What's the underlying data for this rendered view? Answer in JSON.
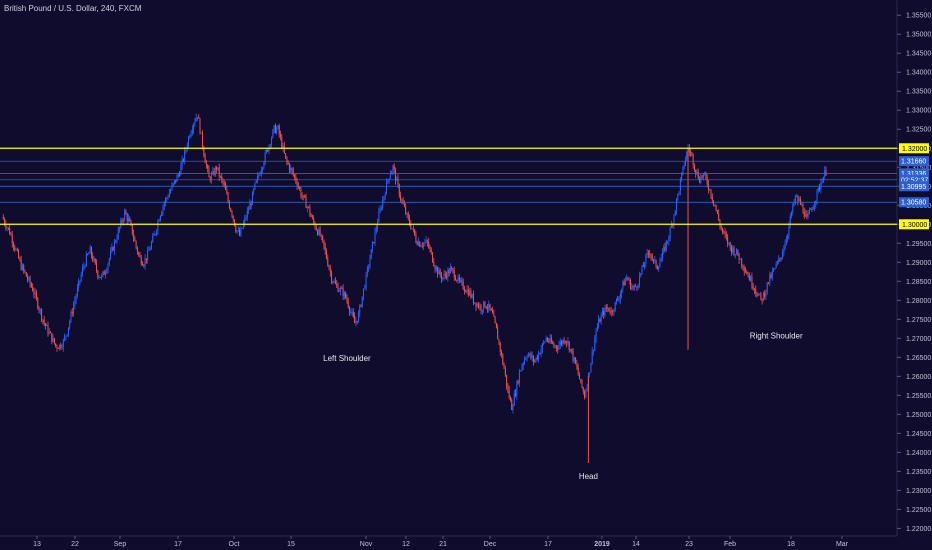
{
  "chart_data": {
    "type": "candlestick",
    "title": "British Pound / U.S. Dollar, 240, FXCM",
    "y_ticks": [
      "1.35500",
      "1.35000",
      "1.34500",
      "1.34000",
      "1.33500",
      "1.33000",
      "1.32500",
      "1.32000",
      "1.31500",
      "1.31000",
      "1.30500",
      "1.30000",
      "1.29500",
      "1.29000",
      "1.28500",
      "1.28000",
      "1.27500",
      "1.27000",
      "1.26500",
      "1.26000",
      "1.25500",
      "1.25000",
      "1.24500",
      "1.24000",
      "1.23500",
      "1.23000",
      "1.22500",
      "1.22000"
    ],
    "y_tick_values": [
      1.355,
      1.35,
      1.345,
      1.34,
      1.335,
      1.33,
      1.325,
      1.32,
      1.315,
      1.31,
      1.305,
      1.3,
      1.295,
      1.29,
      1.285,
      1.28,
      1.275,
      1.27,
      1.265,
      1.26,
      1.255,
      1.25,
      1.245,
      1.24,
      1.235,
      1.23,
      1.225,
      1.22
    ],
    "x_ticks": [
      "13",
      "22",
      "Sep",
      "17",
      "Oct",
      "15",
      "Nov",
      "12",
      "21",
      "Dec",
      "17",
      "2019",
      "14",
      "23",
      "Feb",
      "18",
      "Mar"
    ],
    "ylim": [
      1.218,
      1.359
    ],
    "horizontal_lines": [
      {
        "value": 1.32,
        "label": "1.32000",
        "color": "#ffff00"
      },
      {
        "value": 1.3,
        "label": "1.30000",
        "color": "#ffff00"
      }
    ],
    "price_markers": [
      {
        "value": 1.3166,
        "label": "1.31660"
      },
      {
        "value": 1.3134,
        "label": "1.31336"
      },
      {
        "value": 1.3117,
        "label": "02:52:37"
      },
      {
        "value": 1.31,
        "label": "1.30995"
      },
      {
        "value": 1.3058,
        "label": "1.30580"
      }
    ],
    "close_path": [
      1.302,
      1.3,
      1.298,
      1.295,
      1.292,
      1.289,
      1.287,
      1.285,
      1.283,
      1.28,
      1.277,
      1.274,
      1.272,
      1.27,
      1.268,
      1.268,
      1.269,
      1.272,
      1.276,
      1.28,
      1.284,
      1.288,
      1.291,
      1.293,
      1.29,
      1.287,
      1.286,
      1.288,
      1.291,
      1.294,
      1.297,
      1.3,
      1.303,
      1.301,
      1.298,
      1.294,
      1.291,
      1.29,
      1.292,
      1.295,
      1.298,
      1.302,
      1.305,
      1.307,
      1.309,
      1.311,
      1.313,
      1.316,
      1.32,
      1.324,
      1.327,
      1.329,
      1.323,
      1.317,
      1.312,
      1.313,
      1.315,
      1.312,
      1.31,
      1.306,
      1.303,
      1.299,
      1.297,
      1.3,
      1.303,
      1.306,
      1.31,
      1.313,
      1.316,
      1.319,
      1.322,
      1.325,
      1.325,
      1.321,
      1.317,
      1.315,
      1.313,
      1.311,
      1.308,
      1.306,
      1.304,
      1.301,
      1.299,
      1.297,
      1.294,
      1.29,
      1.286,
      1.284,
      1.283,
      1.282,
      1.28,
      1.277,
      1.274,
      1.276,
      1.281,
      1.286,
      1.291,
      1.296,
      1.301,
      1.305,
      1.309,
      1.313,
      1.315,
      1.311,
      1.307,
      1.304,
      1.301,
      1.299,
      1.296,
      1.295,
      1.295,
      1.295,
      1.292,
      1.289,
      1.287,
      1.286,
      1.287,
      1.288,
      1.287,
      1.285,
      1.284,
      1.283,
      1.282,
      1.28,
      1.279,
      1.278,
      1.279,
      1.278,
      1.276,
      1.272,
      1.267,
      1.262,
      1.256,
      1.252,
      1.256,
      1.261,
      1.264,
      1.266,
      1.265,
      1.264,
      1.266,
      1.268,
      1.27,
      1.269,
      1.268,
      1.268,
      1.269,
      1.27,
      1.268,
      1.265,
      1.262,
      1.258,
      1.255,
      1.26,
      1.266,
      1.272,
      1.275,
      1.277,
      1.278,
      1.277,
      1.279,
      1.281,
      1.284,
      1.286,
      1.284,
      1.283,
      1.285,
      1.288,
      1.291,
      1.293,
      1.29,
      1.289,
      1.291,
      1.294,
      1.297,
      1.301,
      1.306,
      1.311,
      1.316,
      1.32,
      1.318,
      1.314,
      1.312,
      1.313,
      1.311,
      1.308,
      1.305,
      1.301,
      1.298,
      1.296,
      1.294,
      1.293,
      1.292,
      1.29,
      1.288,
      1.286,
      1.284,
      1.282,
      1.28,
      1.282,
      1.285,
      1.287,
      1.289,
      1.291,
      1.294,
      1.298,
      1.303,
      1.307,
      1.306,
      1.304,
      1.301,
      1.304,
      1.306,
      1.309,
      1.312,
      1.314
    ],
    "annotations": [
      {
        "text": "Left Shoulder",
        "x_index": 90,
        "y": 1.264
      },
      {
        "text": "Head",
        "x_index": 153,
        "y": 1.233
      },
      {
        "text": "Right Shoulder",
        "x_index": 202,
        "y": 1.27
      }
    ],
    "up_color": "#2962ff",
    "down_color": "#ef5350",
    "background": "#0f0c2e",
    "grid": false
  }
}
